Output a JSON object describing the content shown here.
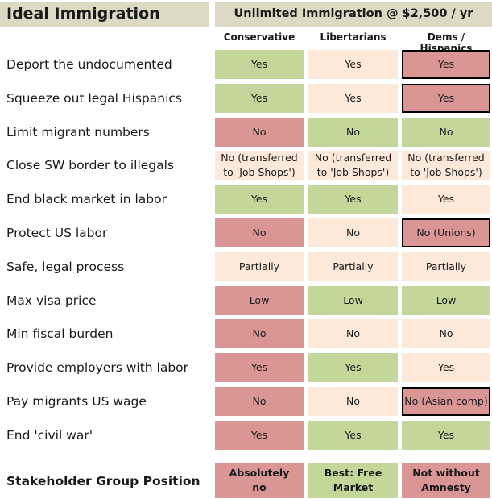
{
  "title": "Ideal Immigration",
  "scenario": "Unlimited Immigration @ $2,500 / yr",
  "columns": [
    "Conservative",
    "Libertarians",
    "Dems / Hispanics"
  ],
  "colors": {
    "green": "#c4d79b",
    "red": "#da9694",
    "peach": "#fde9d9",
    "header": "#ddd9c4"
  },
  "rows": [
    {
      "label": "Deport the undocumented",
      "cells": [
        {
          "text": "Yes",
          "color": "green"
        },
        {
          "text": "Yes",
          "color": "peach"
        },
        {
          "text": "Yes",
          "color": "red",
          "outlined": true
        }
      ]
    },
    {
      "label": "Squeeze out legal Hispanics",
      "cells": [
        {
          "text": "Yes",
          "color": "green"
        },
        {
          "text": "Yes",
          "color": "peach"
        },
        {
          "text": "Yes",
          "color": "red",
          "outlined": true
        }
      ]
    },
    {
      "label": "Limit migrant numbers",
      "cells": [
        {
          "text": "No",
          "color": "red"
        },
        {
          "text": "No",
          "color": "green"
        },
        {
          "text": "No",
          "color": "green"
        }
      ]
    },
    {
      "label": "Close SW border to illegals",
      "cells": [
        {
          "text": "No (transferred to 'Job Shops')",
          "color": "peach"
        },
        {
          "text": "No (transferred to 'Job Shops')",
          "color": "peach"
        },
        {
          "text": "No (transferred to 'Job Shops')",
          "color": "peach"
        }
      ]
    },
    {
      "label": "End black market in labor",
      "cells": [
        {
          "text": "Yes",
          "color": "green"
        },
        {
          "text": "Yes",
          "color": "green"
        },
        {
          "text": "Yes",
          "color": "peach"
        }
      ]
    },
    {
      "label": "Protect US labor",
      "cells": [
        {
          "text": "No",
          "color": "red"
        },
        {
          "text": "No",
          "color": "peach"
        },
        {
          "text": "No (Unions)",
          "color": "red",
          "outlined": true
        }
      ]
    },
    {
      "label": "Safe, legal process",
      "cells": [
        {
          "text": "Partially",
          "color": "peach"
        },
        {
          "text": "Partially",
          "color": "peach"
        },
        {
          "text": "Partially",
          "color": "peach"
        }
      ]
    },
    {
      "label": "Max visa price",
      "cells": [
        {
          "text": "Low",
          "color": "red"
        },
        {
          "text": "Low",
          "color": "green"
        },
        {
          "text": "Low",
          "color": "green"
        }
      ]
    },
    {
      "label": "Min fiscal burden",
      "cells": [
        {
          "text": "No",
          "color": "red"
        },
        {
          "text": "No",
          "color": "peach"
        },
        {
          "text": "No",
          "color": "peach"
        }
      ]
    },
    {
      "label": "Provide employers with labor",
      "cells": [
        {
          "text": "Yes",
          "color": "red"
        },
        {
          "text": "Yes",
          "color": "green"
        },
        {
          "text": "Yes",
          "color": "peach"
        }
      ]
    },
    {
      "label": "Pay migrants US wage",
      "cells": [
        {
          "text": "No",
          "color": "red"
        },
        {
          "text": "No",
          "color": "peach"
        },
        {
          "text": "No (Asian comp)",
          "color": "red",
          "outlined": true
        }
      ]
    },
    {
      "label": "End 'civil war'",
      "cells": [
        {
          "text": "Yes",
          "color": "red"
        },
        {
          "text": "Yes",
          "color": "green"
        },
        {
          "text": "Yes",
          "color": "green"
        }
      ]
    }
  ],
  "footer": {
    "label": "Stakeholder Group Position",
    "cells": [
      {
        "text": "Absolutely no",
        "color": "red"
      },
      {
        "text": "Best: Free Market",
        "color": "green"
      },
      {
        "text": "Not without Amnesty",
        "color": "red"
      }
    ]
  }
}
